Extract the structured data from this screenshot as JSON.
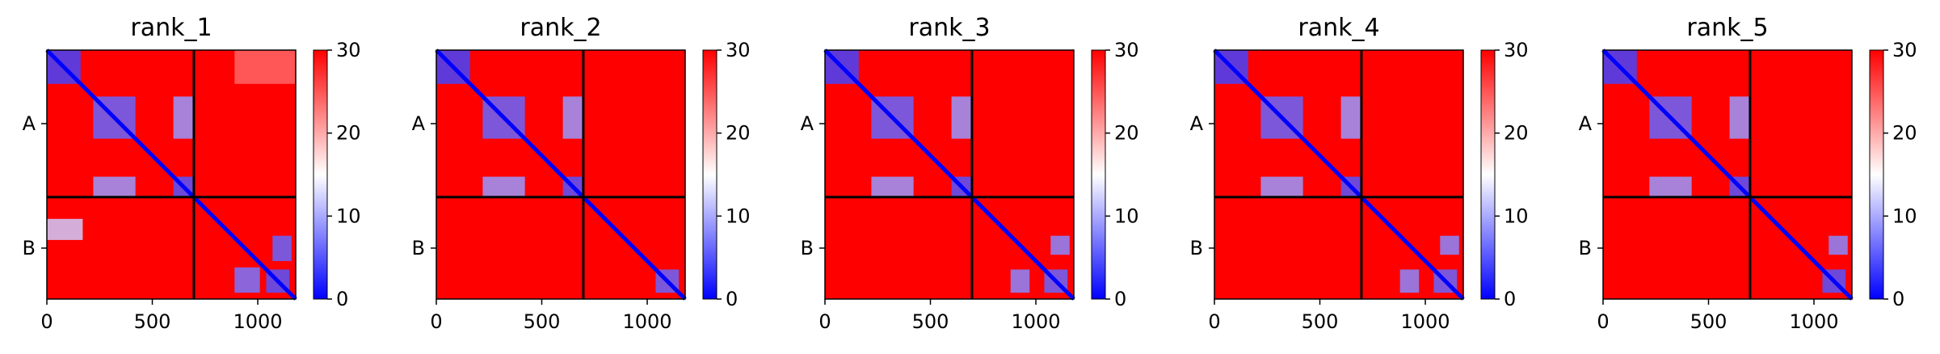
{
  "chart_data": [
    {
      "type": "heatmap",
      "title": "rank_1",
      "chain_labels": [
        "A",
        "B"
      ],
      "chain_boundary": 697,
      "total_length": 1180,
      "xticks": [
        0,
        500,
        1000
      ],
      "colorbar": {
        "min": 0,
        "max": 30,
        "ticks": [
          0,
          10,
          20,
          30
        ],
        "colors": [
          "#0000ff",
          "#ffffff",
          "#ff0000"
        ]
      },
      "blocks": [
        {
          "rows": [
            0,
            160
          ],
          "cols": [
            0,
            160
          ],
          "value": 4
        },
        {
          "rows": [
            220,
            420
          ],
          "cols": [
            220,
            420
          ],
          "value": 6
        },
        {
          "rows": [
            600,
            700
          ],
          "cols": [
            600,
            700
          ],
          "value": 5
        },
        {
          "rows": [
            220,
            420
          ],
          "cols": [
            600,
            700
          ],
          "value": 9
        },
        {
          "rows": [
            600,
            700
          ],
          "cols": [
            220,
            420
          ],
          "value": 9
        },
        {
          "rows": [
            0,
            160
          ],
          "cols": [
            890,
            1180
          ],
          "value": 24
        },
        {
          "rows": [
            800,
            900
          ],
          "cols": [
            0,
            170
          ],
          "value": 12
        },
        {
          "rows": [
            880,
            1000
          ],
          "cols": [
            1070,
            1160
          ],
          "value": 6
        },
        {
          "rows": [
            1030,
            1150
          ],
          "cols": [
            890,
            1010
          ],
          "value": 7
        },
        {
          "rows": [
            1040,
            1150
          ],
          "cols": [
            1040,
            1150
          ],
          "value": 5
        }
      ]
    },
    {
      "type": "heatmap",
      "title": "rank_2",
      "chain_labels": [
        "A",
        "B"
      ],
      "chain_boundary": 697,
      "total_length": 1180,
      "xticks": [
        0,
        500,
        1000
      ],
      "colorbar": {
        "min": 0,
        "max": 30,
        "ticks": [
          0,
          10,
          20,
          30
        ],
        "colors": [
          "#0000ff",
          "#ffffff",
          "#ff0000"
        ]
      },
      "blocks": [
        {
          "rows": [
            0,
            160
          ],
          "cols": [
            0,
            160
          ],
          "value": 4
        },
        {
          "rows": [
            220,
            420
          ],
          "cols": [
            220,
            420
          ],
          "value": 6
        },
        {
          "rows": [
            600,
            700
          ],
          "cols": [
            600,
            700
          ],
          "value": 5
        },
        {
          "rows": [
            220,
            420
          ],
          "cols": [
            600,
            700
          ],
          "value": 9
        },
        {
          "rows": [
            600,
            700
          ],
          "cols": [
            220,
            420
          ],
          "value": 9
        },
        {
          "rows": [
            1040,
            1150
          ],
          "cols": [
            1040,
            1150
          ],
          "value": 6
        }
      ]
    },
    {
      "type": "heatmap",
      "title": "rank_3",
      "chain_labels": [
        "A",
        "B"
      ],
      "chain_boundary": 697,
      "total_length": 1180,
      "xticks": [
        0,
        500,
        1000
      ],
      "colorbar": {
        "min": 0,
        "max": 30,
        "ticks": [
          0,
          10,
          20,
          30
        ],
        "colors": [
          "#0000ff",
          "#ffffff",
          "#ff0000"
        ]
      },
      "blocks": [
        {
          "rows": [
            0,
            160
          ],
          "cols": [
            0,
            160
          ],
          "value": 4
        },
        {
          "rows": [
            220,
            420
          ],
          "cols": [
            220,
            420
          ],
          "value": 6
        },
        {
          "rows": [
            600,
            700
          ],
          "cols": [
            600,
            700
          ],
          "value": 5
        },
        {
          "rows": [
            220,
            420
          ],
          "cols": [
            600,
            700
          ],
          "value": 9
        },
        {
          "rows": [
            600,
            700
          ],
          "cols": [
            220,
            420
          ],
          "value": 9
        },
        {
          "rows": [
            880,
            970
          ],
          "cols": [
            1070,
            1160
          ],
          "value": 8
        },
        {
          "rows": [
            1040,
            1150
          ],
          "cols": [
            880,
            970
          ],
          "value": 8
        },
        {
          "rows": [
            1040,
            1150
          ],
          "cols": [
            1040,
            1150
          ],
          "value": 6
        }
      ]
    },
    {
      "type": "heatmap",
      "title": "rank_4",
      "chain_labels": [
        "A",
        "B"
      ],
      "chain_boundary": 697,
      "total_length": 1180,
      "xticks": [
        0,
        500,
        1000
      ],
      "colorbar": {
        "min": 0,
        "max": 30,
        "ticks": [
          0,
          10,
          20,
          30
        ],
        "colors": [
          "#0000ff",
          "#ffffff",
          "#ff0000"
        ]
      },
      "blocks": [
        {
          "rows": [
            0,
            160
          ],
          "cols": [
            0,
            160
          ],
          "value": 4
        },
        {
          "rows": [
            220,
            420
          ],
          "cols": [
            220,
            420
          ],
          "value": 6
        },
        {
          "rows": [
            600,
            700
          ],
          "cols": [
            600,
            700
          ],
          "value": 5
        },
        {
          "rows": [
            220,
            420
          ],
          "cols": [
            600,
            700
          ],
          "value": 9
        },
        {
          "rows": [
            600,
            700
          ],
          "cols": [
            220,
            420
          ],
          "value": 9
        },
        {
          "rows": [
            880,
            970
          ],
          "cols": [
            1070,
            1160
          ],
          "value": 8
        },
        {
          "rows": [
            1040,
            1150
          ],
          "cols": [
            880,
            970
          ],
          "value": 8
        },
        {
          "rows": [
            1040,
            1150
          ],
          "cols": [
            1040,
            1150
          ],
          "value": 6
        }
      ]
    },
    {
      "type": "heatmap",
      "title": "rank_5",
      "chain_labels": [
        "A",
        "B"
      ],
      "chain_boundary": 697,
      "total_length": 1180,
      "xticks": [
        0,
        500,
        1000
      ],
      "colorbar": {
        "min": 0,
        "max": 30,
        "ticks": [
          0,
          10,
          20,
          30
        ],
        "colors": [
          "#0000ff",
          "#ffffff",
          "#ff0000"
        ]
      },
      "blocks": [
        {
          "rows": [
            0,
            160
          ],
          "cols": [
            0,
            160
          ],
          "value": 4
        },
        {
          "rows": [
            220,
            420
          ],
          "cols": [
            220,
            420
          ],
          "value": 6
        },
        {
          "rows": [
            600,
            700
          ],
          "cols": [
            600,
            700
          ],
          "value": 5
        },
        {
          "rows": [
            220,
            420
          ],
          "cols": [
            600,
            700
          ],
          "value": 9
        },
        {
          "rows": [
            600,
            700
          ],
          "cols": [
            220,
            420
          ],
          "value": 9
        },
        {
          "rows": [
            880,
            970
          ],
          "cols": [
            1070,
            1160
          ],
          "value": 8
        },
        {
          "rows": [
            1040,
            1150
          ],
          "cols": [
            1040,
            1150
          ],
          "value": 5
        }
      ]
    }
  ]
}
